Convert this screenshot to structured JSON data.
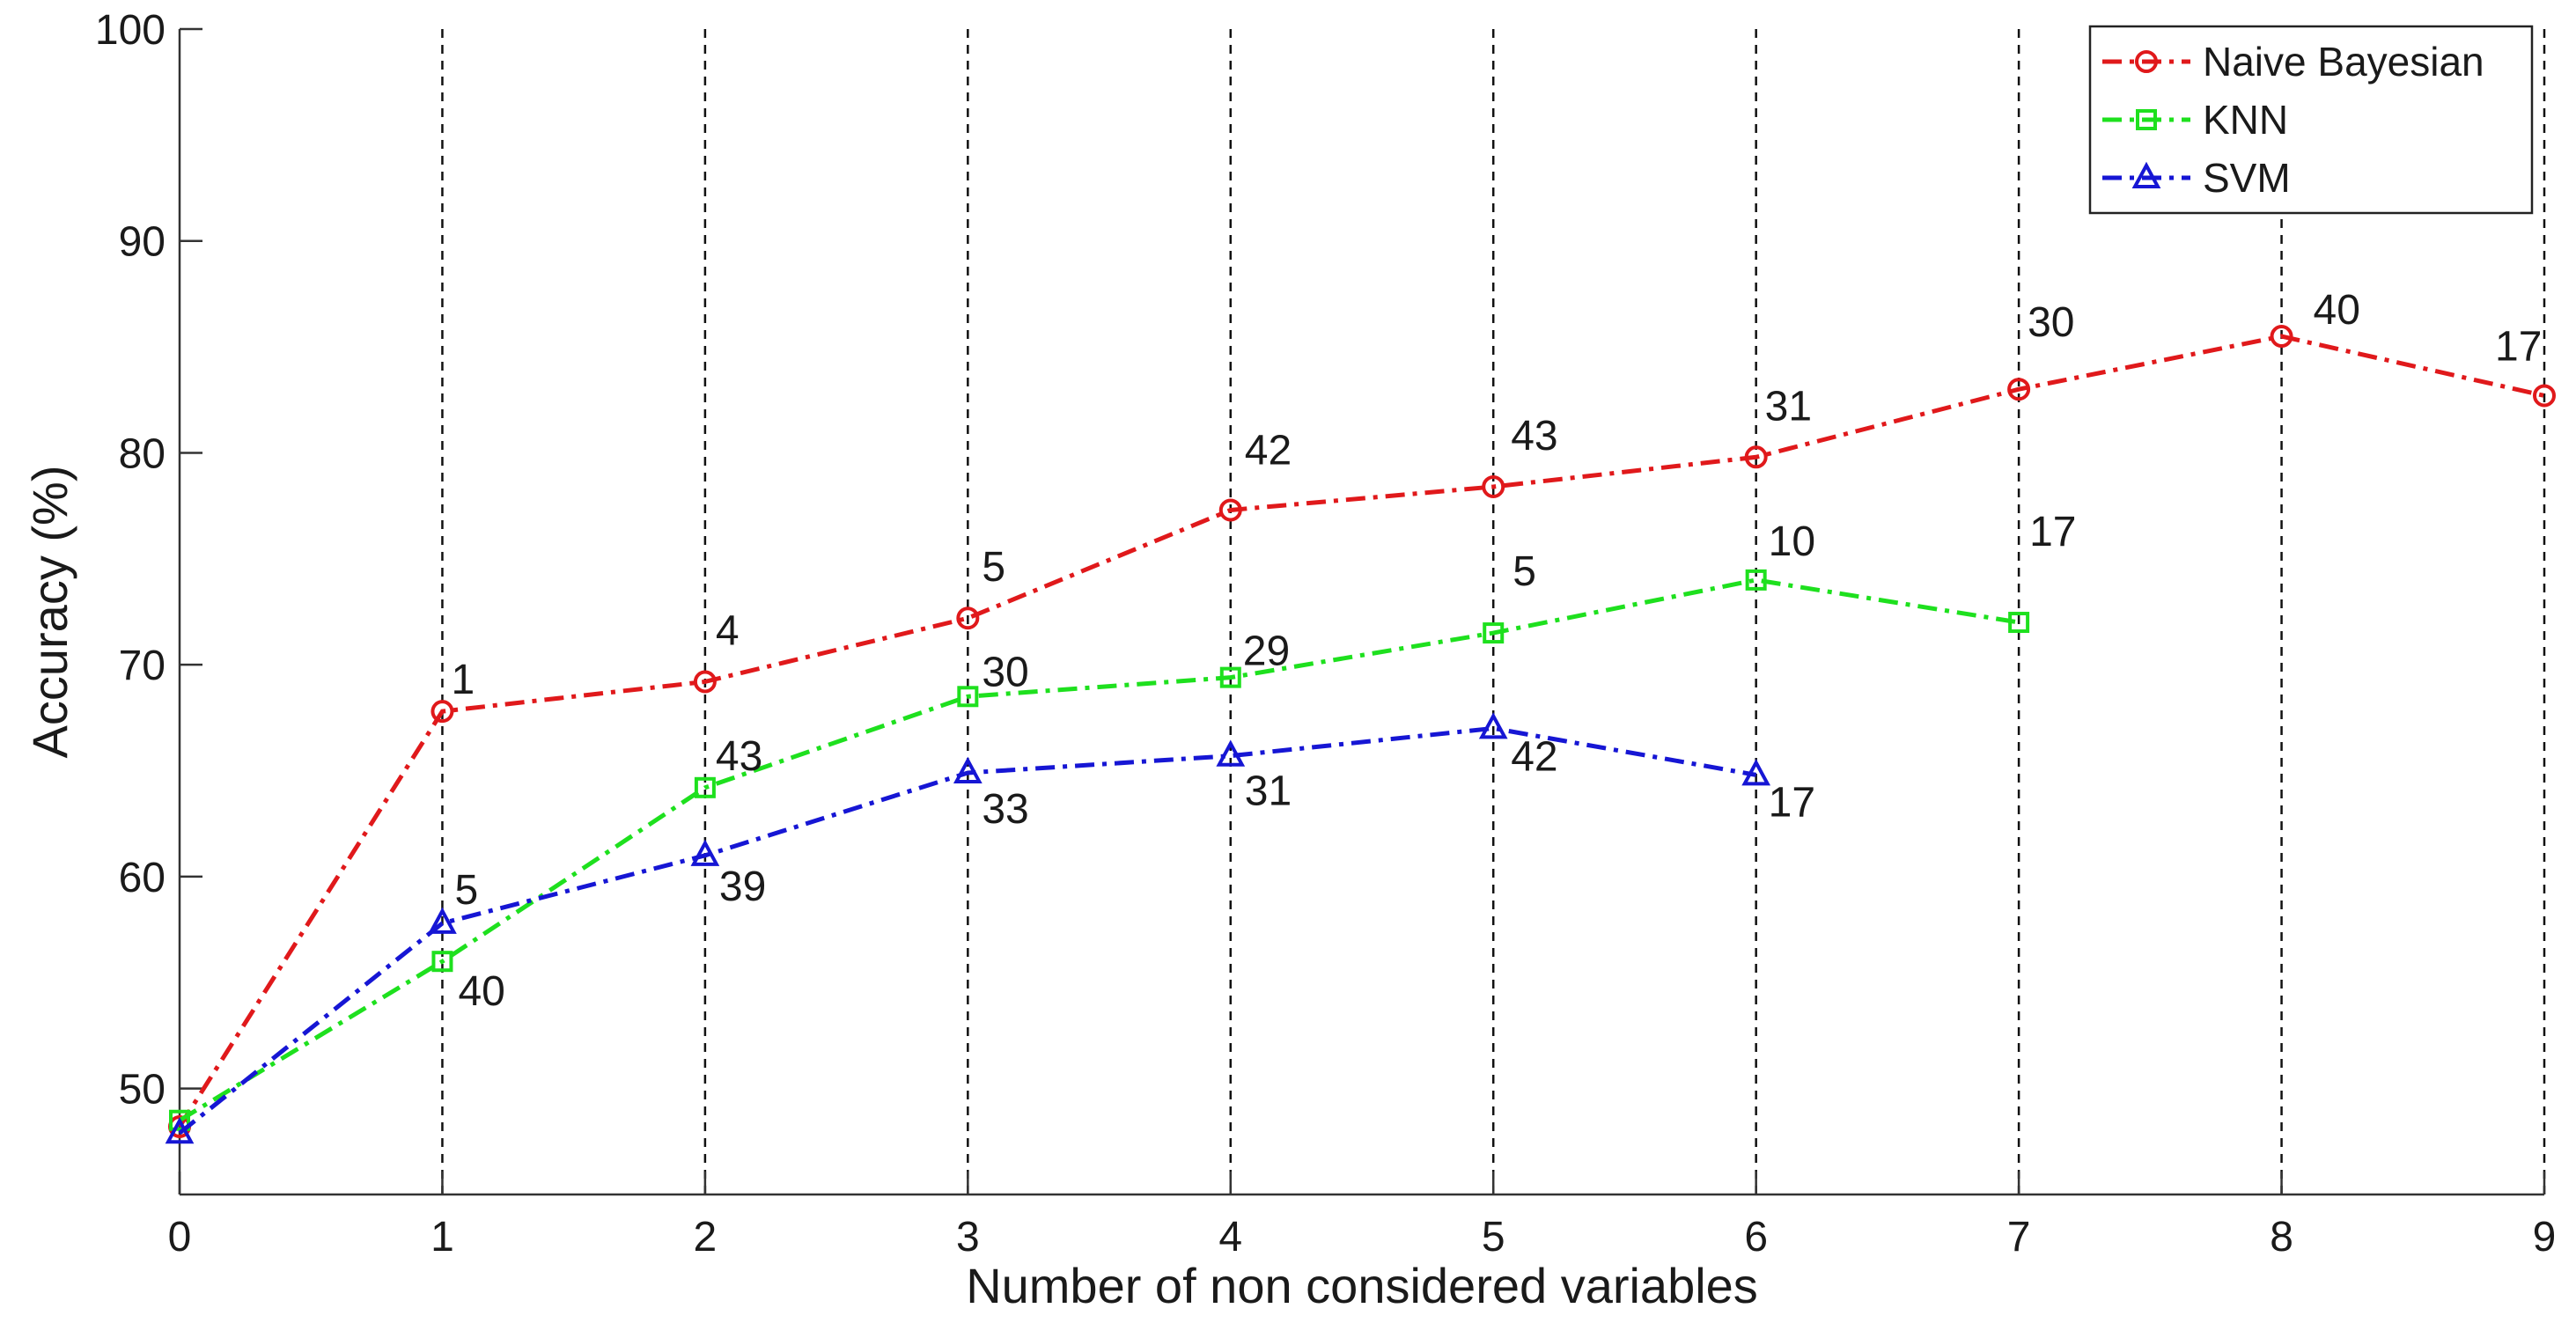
{
  "chart_data": {
    "type": "line",
    "title": "",
    "xlabel": "Number of non considered variables",
    "ylabel": "Accuracy (%)",
    "xlim": [
      0,
      9
    ],
    "ylim": [
      45,
      100
    ],
    "xticks": [
      0,
      1,
      2,
      3,
      4,
      5,
      6,
      7,
      8,
      9
    ],
    "yticks": [
      50,
      60,
      70,
      80,
      90,
      100
    ],
    "vertical_gridlines": [
      1,
      2,
      3,
      4,
      5,
      6,
      7,
      8,
      9
    ],
    "grid": "vertical dashed",
    "legend_position": "top-right",
    "series": [
      {
        "name": "Naive Bayesian",
        "color": "#e0191b",
        "marker": "circle",
        "x": [
          0,
          1,
          2,
          3,
          4,
          5,
          6,
          7,
          8,
          9
        ],
        "values": [
          48.2,
          67.8,
          69.2,
          72.2,
          77.3,
          78.4,
          79.8,
          83.0,
          85.5,
          82.7
        ],
        "labels": [
          "",
          "1",
          "4",
          "5",
          "42",
          "43",
          "31",
          "30",
          "40",
          "17"
        ]
      },
      {
        "name": "KNN",
        "color": "#1ee01e",
        "marker": "square",
        "x": [
          0,
          1,
          2,
          3,
          4,
          5,
          6,
          7
        ],
        "values": [
          48.5,
          56.0,
          64.2,
          68.5,
          69.4,
          71.5,
          74.0,
          72.0
        ],
        "labels": [
          "",
          "40",
          "43",
          "30",
          "29",
          "5",
          "10",
          "17"
        ]
      },
      {
        "name": "SVM",
        "color": "#1616d4",
        "marker": "triangle",
        "x": [
          0,
          1,
          2,
          3,
          4,
          5,
          6
        ],
        "values": [
          47.9,
          57.8,
          61.0,
          64.9,
          65.7,
          67.0,
          64.8
        ],
        "labels": [
          "",
          "5",
          "39",
          "33",
          "31",
          "42",
          "17"
        ]
      }
    ]
  }
}
